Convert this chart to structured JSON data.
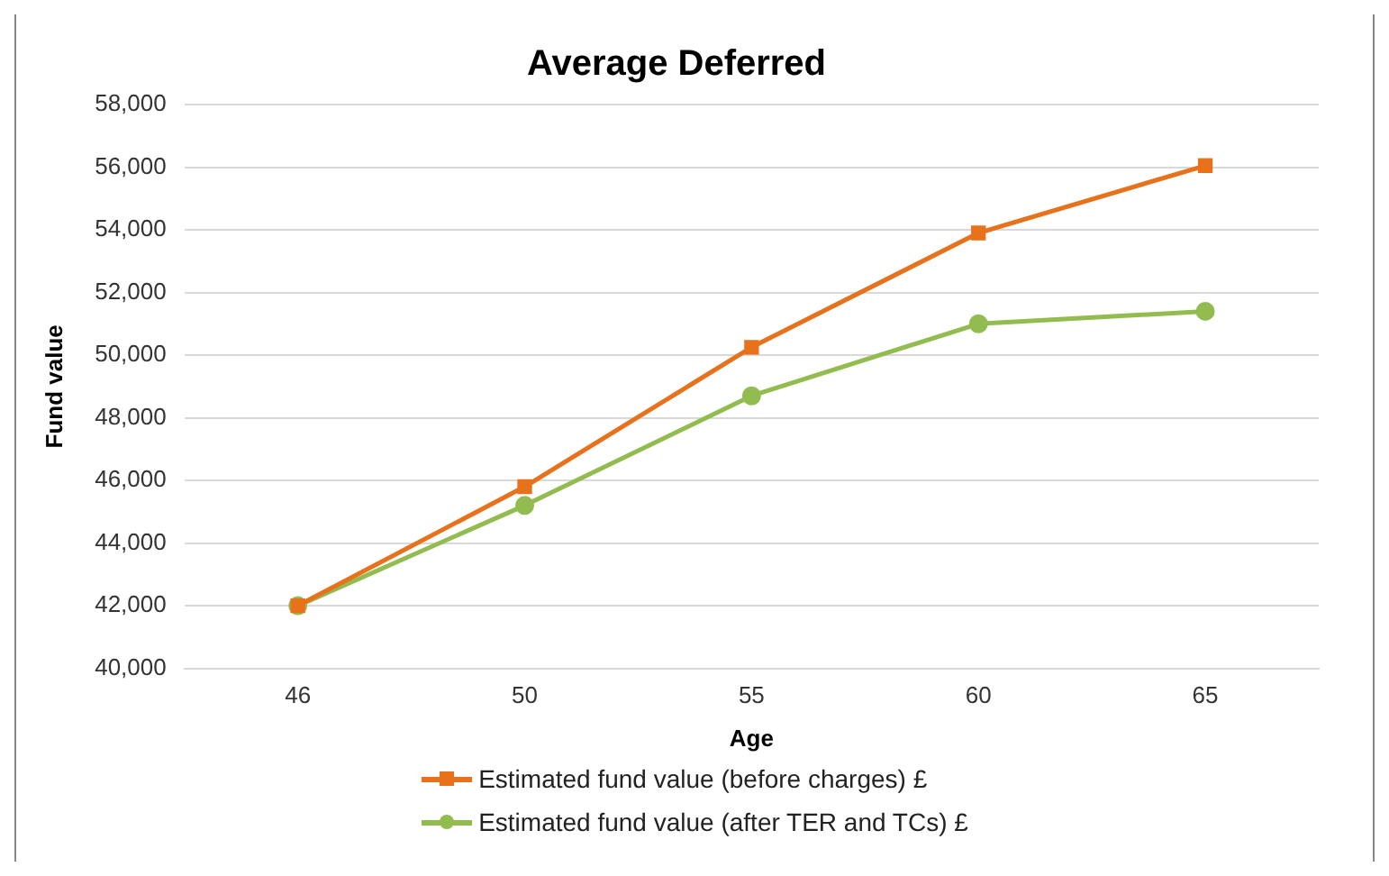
{
  "chart_data": {
    "type": "line",
    "title": "Average Deferred",
    "xlabel": "Age",
    "ylabel": "Fund value",
    "categories": [
      "46",
      "50",
      "55",
      "60",
      "65"
    ],
    "series": [
      {
        "name": "Estimated fund value (before charges) £",
        "color": "#e8711c",
        "marker": "square",
        "values": [
          42000,
          45800,
          50250,
          53900,
          56050
        ]
      },
      {
        "name": "Estimated fund value (after TER and TCs) £",
        "color": "#92bc4f",
        "marker": "circle",
        "values": [
          42000,
          45200,
          48700,
          51000,
          51400
        ]
      }
    ],
    "ylim": [
      40000,
      58000
    ],
    "yticks": [
      {
        "value": 40000,
        "label": "40,000"
      },
      {
        "value": 42000,
        "label": "42,000"
      },
      {
        "value": 44000,
        "label": "44,000"
      },
      {
        "value": 46000,
        "label": "46,000"
      },
      {
        "value": 48000,
        "label": "48,000"
      },
      {
        "value": 50000,
        "label": "50,000"
      },
      {
        "value": 52000,
        "label": "52,000"
      },
      {
        "value": 54000,
        "label": "54,000"
      },
      {
        "value": 56000,
        "label": "56,000"
      },
      {
        "value": 58000,
        "label": "58,000"
      }
    ],
    "grid": "y",
    "legend": "bottom"
  }
}
